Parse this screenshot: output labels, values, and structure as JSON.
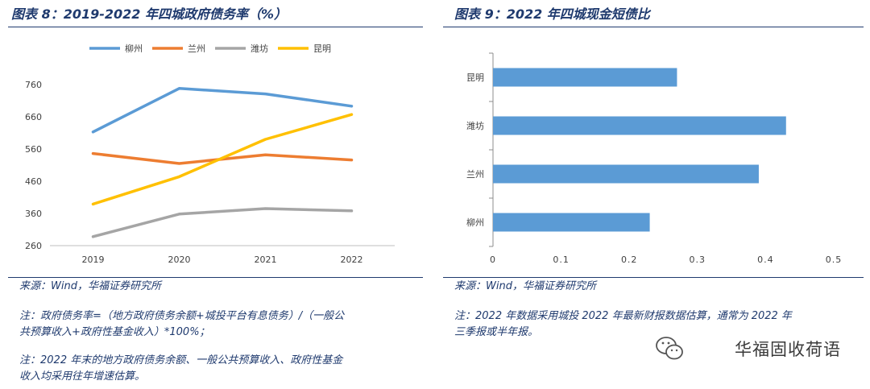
{
  "left": {
    "title": "图表 8：2019-2022 年四城政府债务率（%）",
    "source": "来源：Wind，华福证券研究所",
    "note1": [
      "注：政府债务率=（地方政府债务余额+城投平台有息债务）/（一般公",
      "共预算收入+政府性基金收入）*100%；"
    ],
    "note2": [
      "注：2022 年末的地方政府债务余额、一般公共预算收入、政府性基金",
      "收入均采用往年增速估算。"
    ]
  },
  "right": {
    "title": "图表 9：2022 年四城现金短债比",
    "source": "来源：Wind，华福证券研究所",
    "note1": [
      "注：2022 年数据采用城投 2022 年最新财报数据估算，通常为 2022 年",
      "三季报或半年报。"
    ]
  },
  "watermark": "华福固收荷语",
  "colors": {
    "navy": "#1f3a6e",
    "blue": "#5b9bd5",
    "orange": "#ed7d31",
    "gray": "#a5a5a5",
    "yellow": "#ffc000"
  },
  "chart_data": [
    {
      "type": "line",
      "title": "2019-2022 年四城政府债务率（%）",
      "x": [
        "2019",
        "2020",
        "2021",
        "2022"
      ],
      "ylim": [
        260,
        760
      ],
      "yticks": [
        260,
        360,
        460,
        560,
        660,
        760
      ],
      "legend_position": "top",
      "series": [
        {
          "name": "柳州",
          "color": "#5b9bd5",
          "values": [
            613,
            748,
            731,
            693
          ]
        },
        {
          "name": "兰州",
          "color": "#ed7d31",
          "values": [
            546,
            515,
            542,
            526
          ]
        },
        {
          "name": "潍坊",
          "color": "#a5a5a5",
          "values": [
            288,
            358,
            375,
            368
          ]
        },
        {
          "name": "昆明",
          "color": "#ffc000",
          "values": [
            389,
            474,
            590,
            667
          ]
        }
      ]
    },
    {
      "type": "bar",
      "orientation": "horizontal",
      "title": "2022 年四城现金短债比",
      "categories": [
        "昆明",
        "潍坊",
        "兰州",
        "柳州"
      ],
      "values": [
        0.27,
        0.43,
        0.39,
        0.23
      ],
      "xlim": [
        0,
        0.5
      ],
      "xticks": [
        "0",
        "0.1",
        "0.2",
        "0.3",
        "0.4",
        "0.5"
      ],
      "color": "#5b9bd5"
    }
  ]
}
